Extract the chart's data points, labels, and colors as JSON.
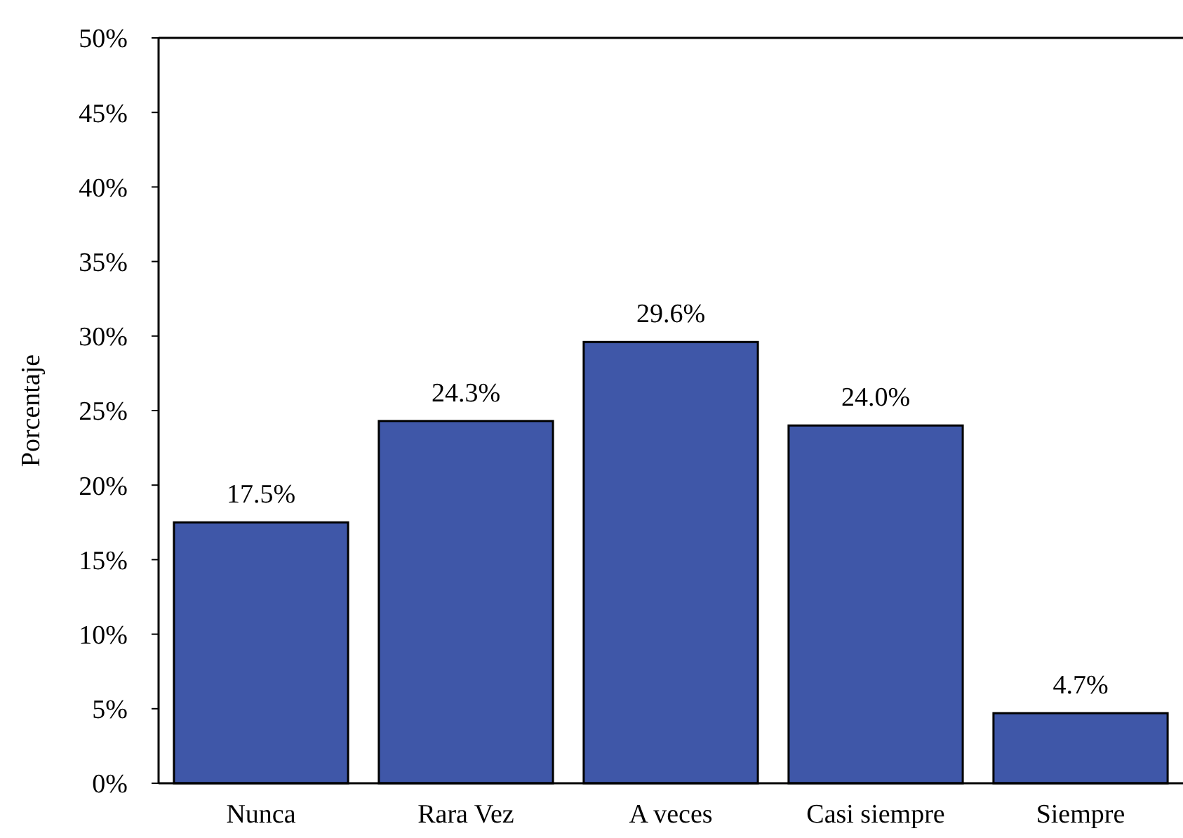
{
  "chart_data": {
    "type": "bar",
    "ylabel": "Porcentaje",
    "categories": [
      "Nunca",
      "Rara Vez",
      "A veces",
      "Casi siempre",
      "Siempre"
    ],
    "values": [
      17.5,
      24.3,
      29.6,
      24.0,
      4.7
    ],
    "value_labels": [
      "17.5%",
      "24.3%",
      "29.6%",
      "24.0%",
      "4.7%"
    ],
    "color": "#3f57a8",
    "ylim": [
      0,
      50
    ],
    "yticks": [
      {
        "value": 0,
        "label": "0%"
      },
      {
        "value": 5,
        "label": "5%"
      },
      {
        "value": 10,
        "label": "10%"
      },
      {
        "value": 15,
        "label": "15%"
      },
      {
        "value": 20,
        "label": "20%"
      },
      {
        "value": 25,
        "label": "25%"
      },
      {
        "value": 30,
        "label": "30%"
      },
      {
        "value": 35,
        "label": "35%"
      },
      {
        "value": 40,
        "label": "40%"
      },
      {
        "value": 45,
        "label": "45%"
      },
      {
        "value": 50,
        "label": "50%"
      }
    ],
    "grid": false
  }
}
